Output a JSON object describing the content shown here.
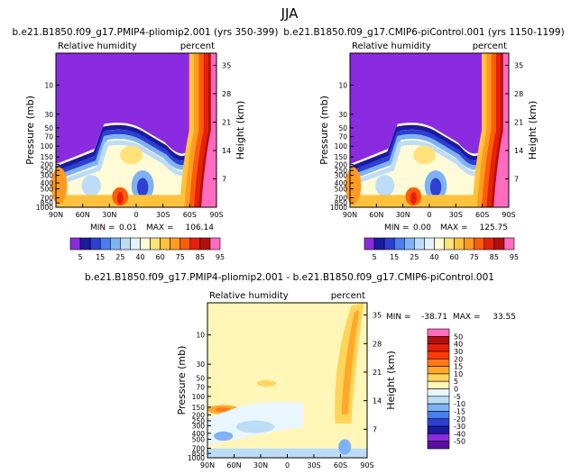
{
  "page": {
    "season": "JJA"
  },
  "chart_data": [
    {
      "type": "heatmap",
      "title": "b.e21.B1850.f09_g17.PMIP4-pliomip2.001 (yrs 350-399)",
      "left_label": "Relative humidity",
      "right_label": "percent",
      "ylabel": "Pressure (mb)",
      "ylabel_right": "Height (km)",
      "x_ticks": [
        "90N",
        "60N",
        "30N",
        "0",
        "30S",
        "60S",
        "90S"
      ],
      "y_ticks": [
        "10",
        "30",
        "50",
        "70",
        "100",
        "150",
        "200",
        "250",
        "300",
        "400",
        "500",
        "700",
        "850",
        "1000"
      ],
      "y_ticks_right": [
        "35",
        "28",
        "21",
        "14",
        "7"
      ],
      "ylim": [
        1000,
        3
      ],
      "stats": {
        "min_label": "MIN =",
        "min": "0.01",
        "max_label": "MAX =",
        "max": "106.14"
      },
      "colorbar": {
        "levels": [
          "5",
          "15",
          "25",
          "40",
          "60",
          "75",
          "85",
          "95"
        ],
        "colors": [
          "#8a2be2",
          "#1a1aa0",
          "#2d3fd4",
          "#4a7ef0",
          "#7fb2f5",
          "#bcdcf8",
          "#e6f2fb",
          "#fffbd6",
          "#ffe27a",
          "#ffc23d",
          "#ff9b1f",
          "#ff5c0a",
          "#e6200a",
          "#b40f0f",
          "#ff6cc0"
        ]
      }
    },
    {
      "type": "heatmap",
      "title": "b.e21.B1850.f09_g17.CMIP6-piControl.001 (yrs 1150-1199)",
      "left_label": "Relative humidity",
      "right_label": "percent",
      "ylabel": "Pressure (mb)",
      "ylabel_right": "Height (km)",
      "x_ticks": [
        "90N",
        "60N",
        "30N",
        "0",
        "30S",
        "60S",
        "90S"
      ],
      "y_ticks": [
        "10",
        "30",
        "50",
        "70",
        "100",
        "150",
        "200",
        "250",
        "300",
        "400",
        "500",
        "700",
        "850",
        "1000"
      ],
      "y_ticks_right": [
        "35",
        "28",
        "21",
        "14",
        "7"
      ],
      "ylim": [
        1000,
        3
      ],
      "stats": {
        "min_label": "MIN =",
        "min": "0.00",
        "max_label": "MAX =",
        "max": "125.75"
      },
      "colorbar": {
        "levels": [
          "5",
          "15",
          "25",
          "40",
          "60",
          "75",
          "85",
          "95"
        ],
        "colors": [
          "#8a2be2",
          "#1a1aa0",
          "#2d3fd4",
          "#4a7ef0",
          "#7fb2f5",
          "#bcdcf8",
          "#e6f2fb",
          "#fffbd6",
          "#ffe27a",
          "#ffc23d",
          "#ff9b1f",
          "#ff5c0a",
          "#e6200a",
          "#b40f0f",
          "#ff6cc0"
        ]
      }
    },
    {
      "type": "heatmap",
      "title": "b.e21.B1850.f09_g17.PMIP4-pliomip2.001 - b.e21.B1850.f09_g17.CMIP6-piControl.001",
      "left_label": "Relative humidity",
      "right_label": "percent",
      "ylabel": "Pressure (mb)",
      "ylabel_right": "Height (km)",
      "x_ticks": [
        "90N",
        "60N",
        "30N",
        "0",
        "30S",
        "60S",
        "90S"
      ],
      "y_ticks": [
        "10",
        "30",
        "50",
        "70",
        "100",
        "150",
        "200",
        "250",
        "300",
        "400",
        "500",
        "700",
        "850",
        "1000"
      ],
      "y_ticks_right": [
        "35",
        "28",
        "21",
        "14",
        "7"
      ],
      "ylim": [
        1000,
        3
      ],
      "stats": {
        "min_label": "MIN =",
        "min": "-38.71",
        "max_label": "MAX =",
        "max": "33.55"
      },
      "colorbar": {
        "levels": [
          "50",
          "40",
          "30",
          "20",
          "15",
          "10",
          "5",
          "0",
          "-5",
          "-10",
          "-15",
          "-20",
          "-30",
          "-40",
          "-50"
        ],
        "colors": [
          "#ff6cc0",
          "#b40f0f",
          "#e6200a",
          "#ff3a0a",
          "#ff7a14",
          "#ffa82a",
          "#ffd45a",
          "#fff6b8",
          "#eaf6fd",
          "#bcdcf8",
          "#7fb2f5",
          "#4a7ef0",
          "#2d3fd4",
          "#1a1aa0",
          "#8a2be2",
          "#5a0fa0"
        ]
      }
    }
  ]
}
